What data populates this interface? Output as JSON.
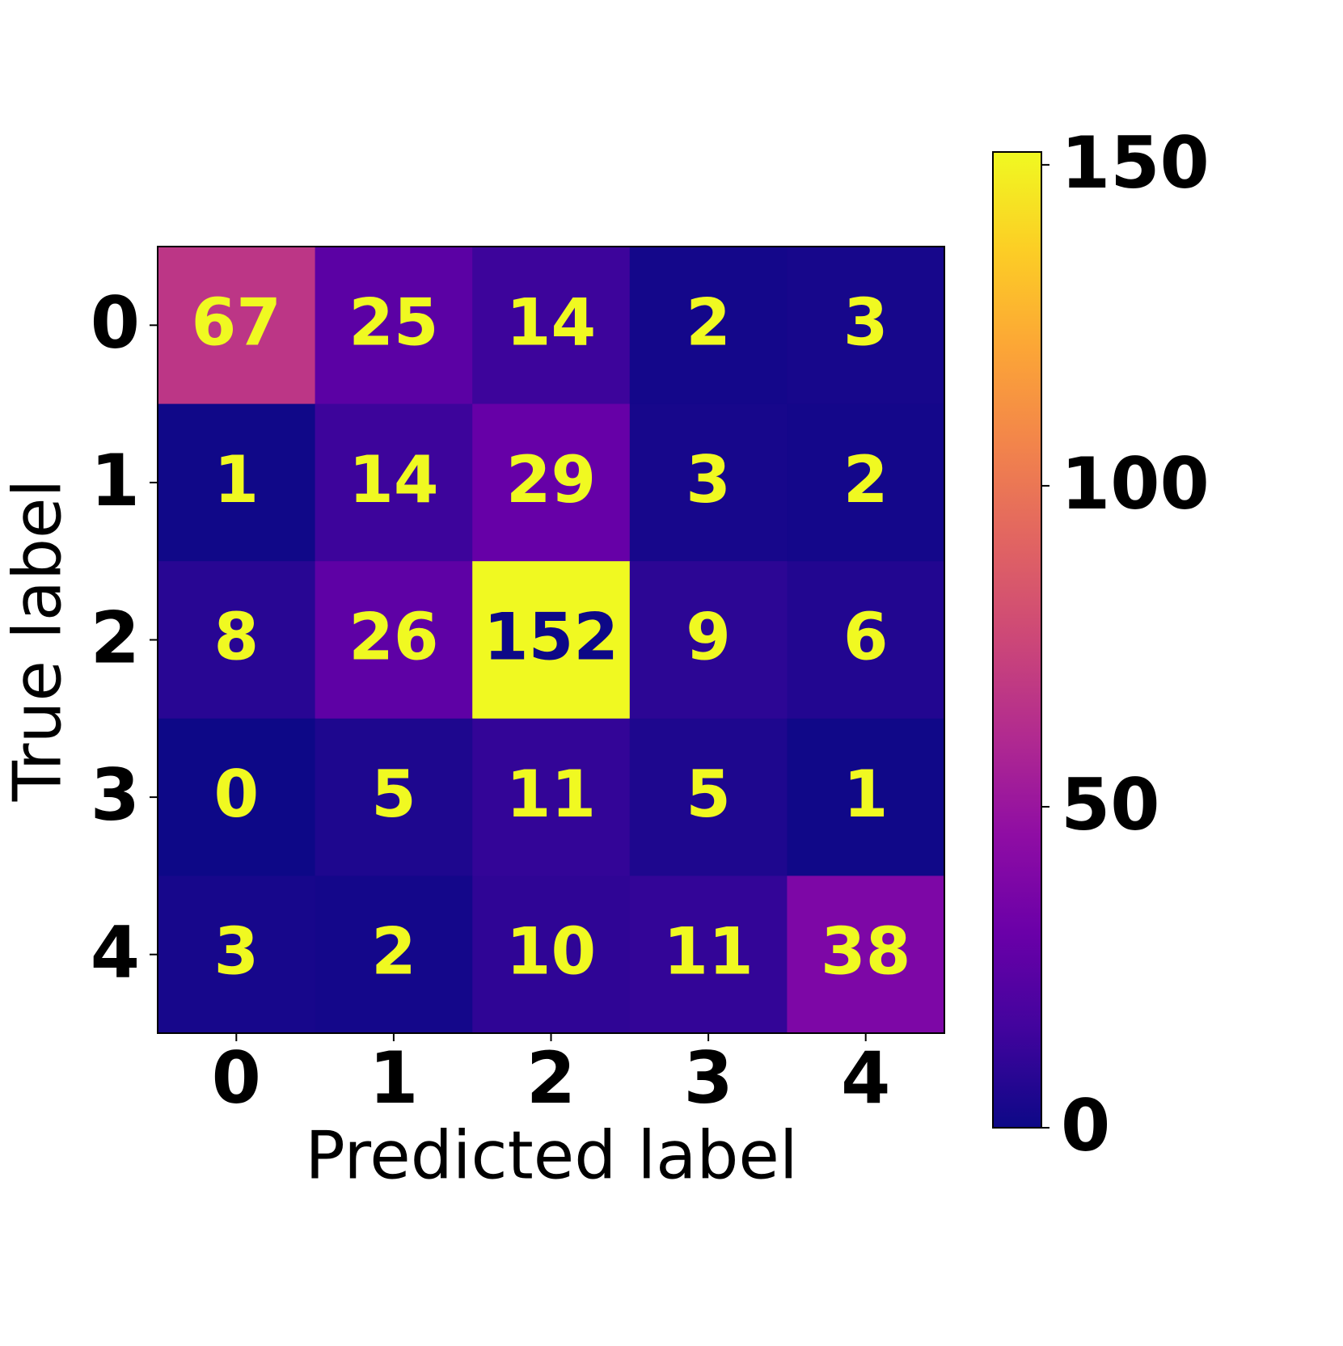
{
  "chart_data": {
    "type": "heatmap",
    "x_label": "Predicted label",
    "y_label": "True label",
    "x_categories": [
      "0",
      "1",
      "2",
      "3",
      "4"
    ],
    "y_categories": [
      "0",
      "1",
      "2",
      "3",
      "4"
    ],
    "values": [
      [
        67,
        25,
        14,
        2,
        3
      ],
      [
        1,
        14,
        29,
        3,
        2
      ],
      [
        8,
        26,
        152,
        9,
        6
      ],
      [
        0,
        5,
        11,
        5,
        1
      ],
      [
        3,
        2,
        10,
        11,
        38
      ]
    ],
    "colormap": "plasma",
    "colorbar_lim": [
      0,
      152
    ],
    "colorbar_ticks": [
      0,
      50,
      100,
      150
    ]
  }
}
